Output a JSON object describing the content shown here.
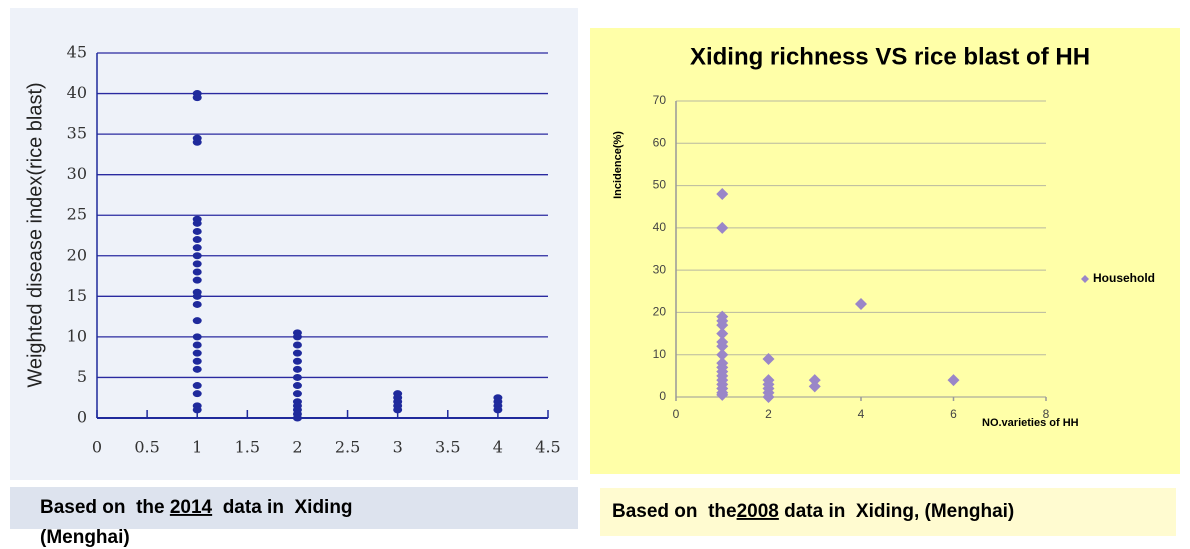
{
  "chart_data": [
    {
      "type": "scatter",
      "marker": "circle",
      "color": "#1f2a9c",
      "grid": true,
      "grid_color": "#2a2aa0",
      "ylabel": "Weighted disease index(rice blast)",
      "caption": [
        "Based on  the ",
        "2014",
        "  data in  Xiding",
        "(Menghai)"
      ],
      "xlim": [
        0,
        4.5
      ],
      "xticks": [
        0,
        0.5,
        1,
        1.5,
        2,
        2.5,
        3,
        3.5,
        4,
        4.5
      ],
      "ylim": [
        0,
        45
      ],
      "yticks": [
        0,
        5,
        10,
        15,
        20,
        25,
        30,
        35,
        40,
        45
      ],
      "x": [
        1,
        1,
        1,
        1,
        1,
        1,
        1,
        1,
        1,
        1,
        1,
        1,
        1,
        1,
        1,
        1,
        1,
        1,
        1,
        1,
        1,
        1,
        1,
        1,
        1,
        1,
        2,
        2,
        2,
        2,
        2,
        2,
        2,
        2,
        2,
        2,
        2,
        2,
        2,
        2,
        3,
        3,
        3,
        3,
        3,
        4,
        4,
        4,
        4
      ],
      "y": [
        40,
        39.5,
        34.5,
        34,
        24.5,
        24,
        23,
        22,
        21,
        20,
        19,
        18,
        17,
        15.5,
        15,
        14,
        12,
        10,
        9,
        8,
        7,
        6,
        4,
        3,
        1.5,
        1,
        10.5,
        10,
        9,
        8,
        7,
        6,
        5,
        4,
        3,
        2,
        1.5,
        1,
        0.5,
        0,
        3,
        2.5,
        2,
        1.5,
        1,
        2.5,
        2,
        1.5,
        1
      ]
    },
    {
      "type": "scatter",
      "marker": "diamond",
      "color": "#9a86c8",
      "grid": true,
      "grid_color": "#b8b8a0",
      "title": "Xiding richness VS rice blast of HH",
      "ylabel": "Incidence(%)",
      "xlabel": "NO.varieties of HH",
      "series_name": "Household",
      "legend": "right",
      "caption": [
        "Based on  the",
        "2008",
        " data in  Xiding, (Menghai)"
      ],
      "xlim": [
        0,
        8
      ],
      "xticks": [
        0,
        2,
        4,
        6,
        8
      ],
      "ylim": [
        0,
        70
      ],
      "yticks": [
        0,
        10,
        20,
        30,
        40,
        50,
        60,
        70
      ],
      "x": [
        1,
        1,
        1,
        1,
        1,
        1,
        1,
        1,
        1,
        1,
        1,
        1,
        1,
        1,
        1,
        1,
        1,
        1,
        2,
        2,
        2,
        2,
        2,
        2,
        3,
        3,
        4,
        6
      ],
      "y": [
        48,
        40,
        19,
        18,
        17,
        15,
        13,
        12,
        10,
        8,
        7,
        6,
        5,
        4,
        3,
        2,
        1,
        0.5,
        9,
        4,
        3,
        2,
        1,
        0,
        4,
        2.5,
        22,
        4
      ]
    }
  ]
}
